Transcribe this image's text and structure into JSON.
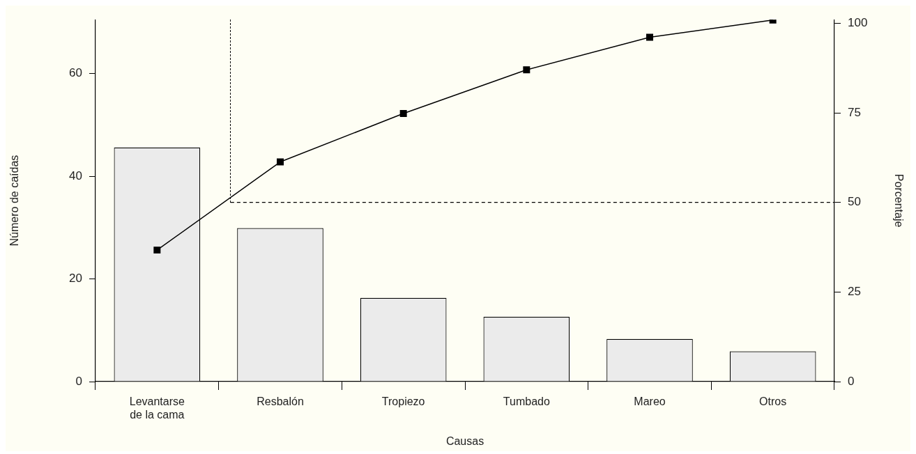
{
  "chart_data": {
    "type": "bar",
    "xlabel": "Causas",
    "ylabel": "Número de caídas",
    "y2label": "Porcentaje",
    "categories": [
      "Levantarse de la cama",
      "Resbalón",
      "Tropiezo",
      "Tumbado",
      "Mareo",
      "Otros"
    ],
    "series": [
      {
        "color": "#ebebeb",
        "values": [
          45.6,
          29.9,
          16.3,
          12.6,
          8.3,
          5.9
        ]
      },
      {
        "type": "line",
        "axis": "y2",
        "color": "#000000",
        "values": [
          36.7,
          61.3,
          74.8,
          87.0,
          96.1,
          100.9
        ]
      }
    ],
    "ylim": [
      0,
      70.5
    ],
    "yticks": [
      0,
      20,
      40,
      60
    ],
    "y2lim": [
      0,
      101
    ],
    "y2ticks": [
      0,
      25,
      50,
      75,
      100
    ],
    "ref_lines": [
      {
        "axis": "y2",
        "value": 50,
        "line_style": "dashed"
      }
    ],
    "grid": false,
    "legend": false,
    "marker": "square"
  }
}
